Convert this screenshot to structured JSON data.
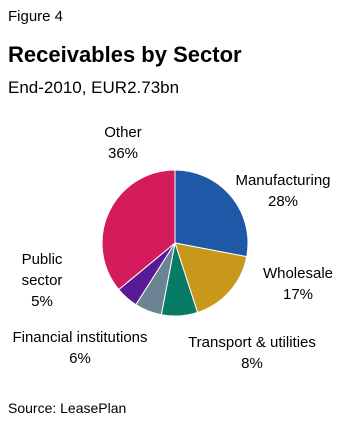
{
  "figure_label": "Figure 4",
  "source": "Source: LeasePlan",
  "chart_data": {
    "type": "pie",
    "title": "Receivables by Sector",
    "subtitle": "End-2010, EUR2.73bn",
    "slices": [
      {
        "label_lines": [
          "Manufacturing"
        ],
        "pct_label": "28%",
        "value": 28,
        "color": "#2058A8"
      },
      {
        "label_lines": [
          "Wholesale"
        ],
        "pct_label": "17%",
        "value": 17,
        "color": "#C8981A"
      },
      {
        "label_lines": [
          "Transport & utilities"
        ],
        "pct_label": "8%",
        "value": 8,
        "color": "#067B66"
      },
      {
        "label_lines": [
          "Financial institutions"
        ],
        "pct_label": "6%",
        "value": 6,
        "color": "#6A8494"
      },
      {
        "label_lines": [
          "Public",
          "sector"
        ],
        "pct_label": "5%",
        "value": 5,
        "color": "#5A1996"
      },
      {
        "label_lines": [
          "Other"
        ],
        "pct_label": "36%",
        "value": 36,
        "color": "#D41C5C"
      }
    ]
  }
}
